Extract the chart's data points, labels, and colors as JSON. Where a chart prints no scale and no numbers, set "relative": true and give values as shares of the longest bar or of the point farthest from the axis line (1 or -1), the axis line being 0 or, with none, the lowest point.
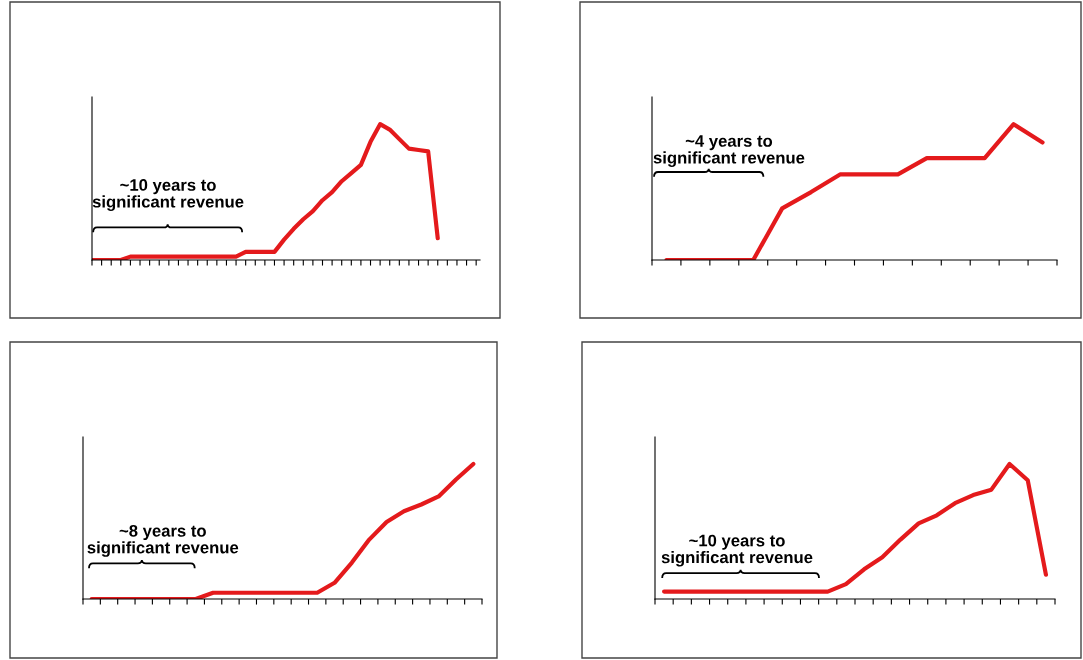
{
  "chart_data": [
    {
      "type": "line",
      "relative": true,
      "categories": [
        null,
        null,
        null,
        null,
        null,
        null,
        null,
        null,
        null,
        null,
        null,
        null,
        null,
        null,
        null,
        null,
        null,
        null,
        null,
        null,
        null,
        null,
        null,
        null,
        null,
        null,
        null,
        null,
        null,
        null,
        null,
        null,
        null,
        null,
        null,
        null,
        null,
        null,
        null,
        null,
        null
      ],
      "series": [
        {
          "color": "#e41a1c",
          "values": [
            0,
            0,
            0,
            0,
            0.025,
            0.025,
            0.025,
            0.025,
            0.025,
            0.025,
            0.025,
            0.025,
            0.025,
            0.025,
            0.025,
            0.025,
            0.06,
            0.06,
            0.06,
            0.06,
            0.15,
            0.23,
            0.3,
            0.36,
            0.44,
            0.5,
            0.58,
            0.64,
            0.7,
            0.87,
            1.0,
            0.96,
            0.89,
            0.82,
            0.81,
            0.8,
            0.16,
            null,
            null,
            null,
            null
          ]
        }
      ],
      "annotations": [
        "~10 years to\nsignificant revenue"
      ],
      "grid": false,
      "legend": false
    },
    {
      "type": "line",
      "relative": true,
      "categories": [
        null,
        null,
        null,
        null,
        null,
        null,
        null,
        null,
        null,
        null,
        null,
        null,
        null,
        null
      ],
      "series": [
        {
          "color": "#e41a1c",
          "values": [
            0,
            0,
            0,
            0,
            0.38,
            0.5,
            0.63,
            0.63,
            0.63,
            0.75,
            0.75,
            0.75,
            1.0,
            0.865
          ]
        }
      ],
      "annotations": [
        "~4 years to\nsignificant revenue"
      ],
      "grid": false,
      "legend": false
    },
    {
      "type": "line",
      "relative": true,
      "categories": [
        null,
        null,
        null,
        null,
        null,
        null,
        null,
        null,
        null,
        null,
        null,
        null,
        null,
        null,
        null,
        null,
        null,
        null,
        null,
        null,
        null,
        null,
        null
      ],
      "series": [
        {
          "color": "#e41a1c",
          "values": [
            0,
            0,
            0,
            0,
            0,
            0,
            0,
            0.046,
            0.046,
            0.046,
            0.046,
            0.046,
            0.046,
            0.046,
            0.12,
            0.27,
            0.44,
            0.57,
            0.65,
            0.7,
            0.76,
            0.885,
            1.0
          ]
        }
      ],
      "annotations": [
        "~8 years to\nsignificant revenue"
      ],
      "grid": false,
      "legend": false
    },
    {
      "type": "line",
      "relative": true,
      "categories": [
        null,
        null,
        null,
        null,
        null,
        null,
        null,
        null,
        null,
        null,
        null,
        null,
        null,
        null,
        null,
        null,
        null,
        null,
        null,
        null,
        null,
        null
      ],
      "series": [
        {
          "color": "#e41a1c",
          "values": [
            0.055,
            0.055,
            0.055,
            0.055,
            0.055,
            0.055,
            0.055,
            0.055,
            0.055,
            0.055,
            0.11,
            0.22,
            0.31,
            0.44,
            0.56,
            0.62,
            0.71,
            0.77,
            0.81,
            1.0,
            0.88,
            0.18
          ]
        }
      ],
      "annotations": [
        "~10 years to\nsignificant revenue"
      ],
      "grid": false,
      "legend": false
    }
  ]
}
